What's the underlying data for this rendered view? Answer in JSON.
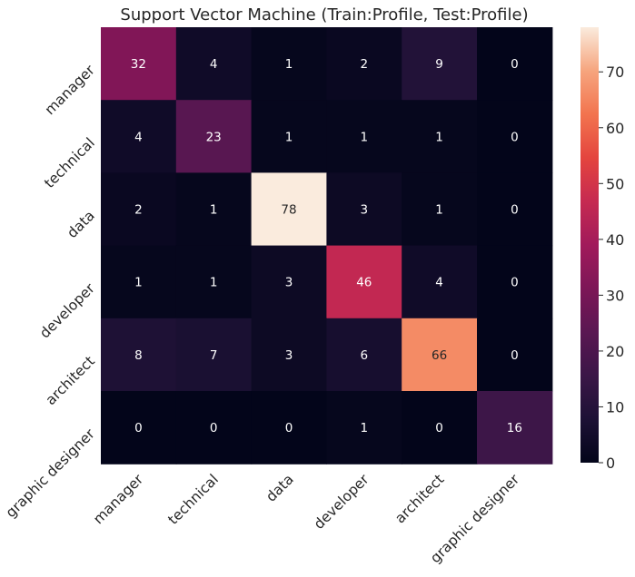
{
  "chart_data": {
    "type": "heatmap",
    "title": "Support Vector Machine (Train:Profile, Test:Profile)",
    "x_categories": [
      "manager",
      "technical",
      "data",
      "developer",
      "architect",
      "graphic designer"
    ],
    "y_categories": [
      "manager",
      "technical",
      "data",
      "developer",
      "architect",
      "graphic designer"
    ],
    "values": [
      [
        32,
        4,
        1,
        2,
        9,
        0
      ],
      [
        4,
        23,
        1,
        1,
        1,
        0
      ],
      [
        2,
        1,
        78,
        3,
        1,
        0
      ],
      [
        1,
        1,
        3,
        46,
        4,
        0
      ],
      [
        8,
        7,
        3,
        6,
        66,
        0
      ],
      [
        0,
        0,
        0,
        1,
        0,
        16
      ]
    ],
    "colorbar": {
      "range": [
        0,
        78
      ],
      "ticks": [
        0,
        10,
        20,
        30,
        40,
        50,
        60,
        70
      ],
      "colormap": "rocket"
    },
    "grid": false
  }
}
